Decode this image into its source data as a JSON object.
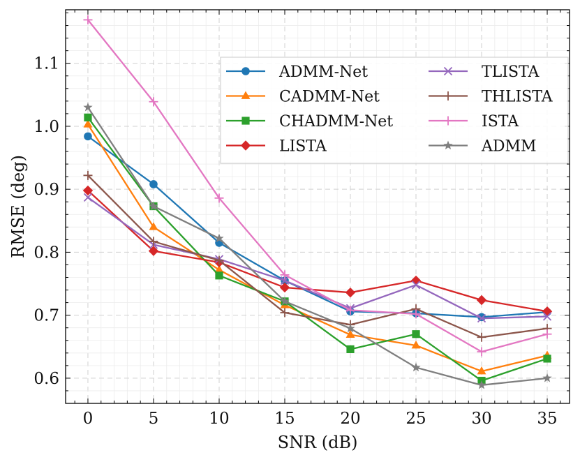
{
  "chart_data": {
    "type": "line",
    "title": "",
    "xlabel": "SNR (dB)",
    "ylabel": "RMSE (deg)",
    "x": [
      0,
      5,
      10,
      15,
      20,
      25,
      30,
      35
    ],
    "xlim": [
      -1.7,
      36.7
    ],
    "ylim": [
      0.56,
      1.185
    ],
    "xticks": [
      0,
      5,
      10,
      15,
      20,
      25,
      30,
      35
    ],
    "yticks": [
      0.6,
      0.7,
      0.8,
      0.9,
      1.0,
      1.1
    ],
    "xtick_labels": [
      "0",
      "5",
      "10",
      "15",
      "20",
      "25",
      "30",
      "35"
    ],
    "ytick_labels": [
      "0.6",
      "0.7",
      "0.8",
      "0.9",
      "1.0",
      "1.1"
    ],
    "grid": true,
    "legend_position": "upper-right",
    "series": [
      {
        "name": "ADMM-Net",
        "color": "#1f77b4",
        "marker": "circle",
        "values": [
          0.984,
          0.908,
          0.815,
          0.755,
          0.706,
          0.703,
          0.697,
          0.705
        ]
      },
      {
        "name": "CADMM-Net",
        "color": "#ff7f0e",
        "marker": "triangle",
        "values": [
          1.003,
          0.84,
          0.772,
          0.716,
          0.669,
          0.652,
          0.611,
          0.636
        ]
      },
      {
        "name": "CHADMM-Net",
        "color": "#2ca02c",
        "marker": "square",
        "values": [
          1.014,
          0.873,
          0.763,
          0.722,
          0.646,
          0.67,
          0.596,
          0.631
        ]
      },
      {
        "name": "LISTA",
        "color": "#d62728",
        "marker": "diamond",
        "values": [
          0.898,
          0.802,
          0.784,
          0.744,
          0.736,
          0.755,
          0.724,
          0.706
        ]
      },
      {
        "name": "TLISTA",
        "color": "#9467bd",
        "marker": "x",
        "values": [
          0.887,
          0.812,
          0.789,
          0.755,
          0.711,
          0.748,
          0.695,
          0.698
        ]
      },
      {
        "name": "THLISTA",
        "color": "#8c564b",
        "marker": "plus",
        "values": [
          0.922,
          0.817,
          0.787,
          0.704,
          0.685,
          0.71,
          0.665,
          0.679
        ]
      },
      {
        "name": "ISTA",
        "color": "#e377c2",
        "marker": "plus",
        "values": [
          1.169,
          1.039,
          0.886,
          0.764,
          0.708,
          0.702,
          0.642,
          0.67
        ]
      },
      {
        "name": "ADMM",
        "color": "#7f7f7f",
        "marker": "star",
        "values": [
          1.03,
          0.873,
          0.822,
          0.722,
          0.679,
          0.617,
          0.589,
          0.6
        ]
      }
    ]
  }
}
